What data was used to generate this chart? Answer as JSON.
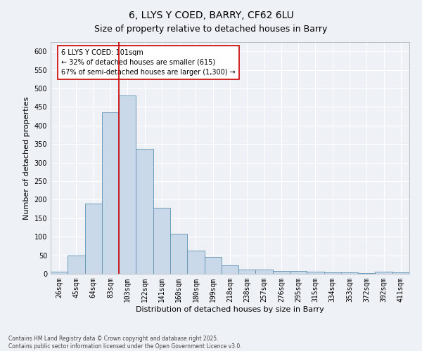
{
  "title_line1": "6, LLYS Y COED, BARRY, CF62 6LU",
  "title_line2": "Size of property relative to detached houses in Barry",
  "xlabel": "Distribution of detached houses by size in Barry",
  "ylabel": "Number of detached properties",
  "categories": [
    "26sqm",
    "45sqm",
    "64sqm",
    "83sqm",
    "103sqm",
    "122sqm",
    "141sqm",
    "160sqm",
    "180sqm",
    "199sqm",
    "218sqm",
    "238sqm",
    "257sqm",
    "276sqm",
    "295sqm",
    "315sqm",
    "334sqm",
    "353sqm",
    "372sqm",
    "392sqm",
    "411sqm"
  ],
  "values": [
    5,
    50,
    190,
    435,
    482,
    338,
    178,
    108,
    62,
    45,
    22,
    12,
    12,
    8,
    8,
    5,
    3,
    3,
    2,
    5,
    3
  ],
  "bar_color": "#c9d9ea",
  "bar_edge_color": "#6090b0",
  "vline_color": "#cc0000",
  "vline_index": 4,
  "annotation_text": "6 LLYS Y COED: 101sqm\n← 32% of detached houses are smaller (615)\n67% of semi-detached houses are larger (1,300) →",
  "annotation_box_facecolor": "#ffffff",
  "annotation_box_edgecolor": "#cc0000",
  "ylim": [
    0,
    625
  ],
  "yticks": [
    0,
    50,
    100,
    150,
    200,
    250,
    300,
    350,
    400,
    450,
    500,
    550,
    600
  ],
  "background_color": "#eef2f6",
  "grid_color": "#ffffff",
  "footer_text": "Contains HM Land Registry data © Crown copyright and database right 2025.\nContains public sector information licensed under the Open Government Licence v3.0.",
  "title_fontsize": 10,
  "axis_label_fontsize": 8,
  "tick_fontsize": 7,
  "annotation_fontsize": 7,
  "footer_fontsize": 5.5
}
